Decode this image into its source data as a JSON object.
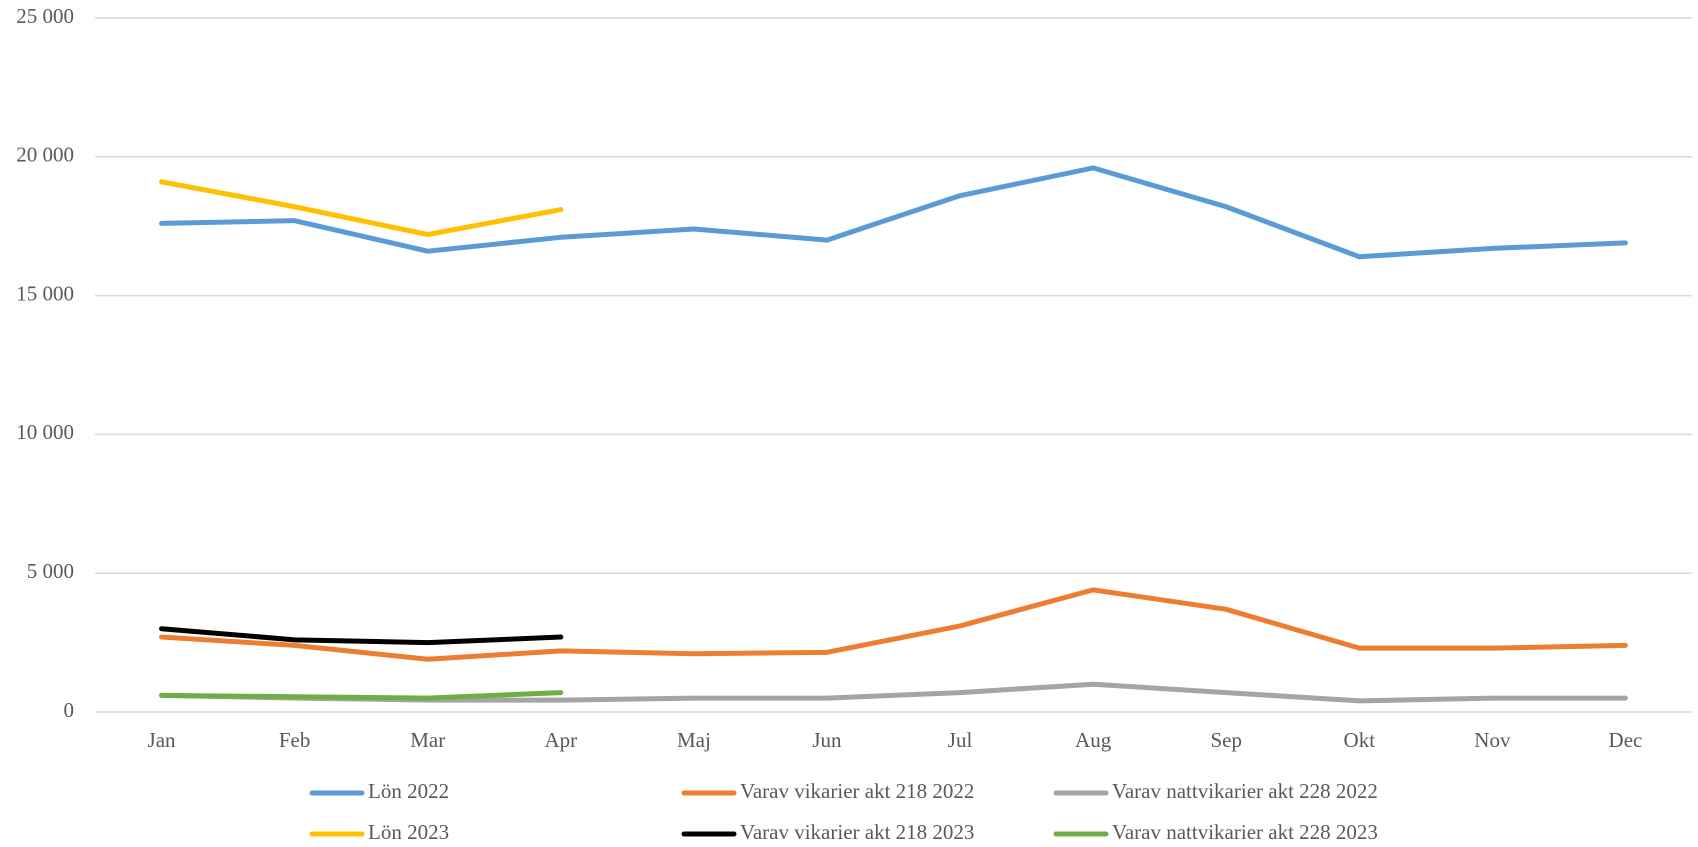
{
  "chart_data": {
    "type": "line",
    "categories": [
      "Jan",
      "Feb",
      "Mar",
      "Apr",
      "Maj",
      "Jun",
      "Jul",
      "Aug",
      "Sep",
      "Okt",
      "Nov",
      "Dec"
    ],
    "series": [
      {
        "name": "Lön 2022",
        "color": "#5b9bd5",
        "values": [
          17600,
          17700,
          16600,
          17100,
          17400,
          17000,
          18600,
          19600,
          18200,
          16400,
          16700,
          16900
        ]
      },
      {
        "name": "Varav vikarier akt 218 2022",
        "color": "#ed7d31",
        "values": [
          2700,
          2400,
          1900,
          2200,
          2100,
          2150,
          3100,
          4400,
          3700,
          2300,
          2300,
          2400
        ]
      },
      {
        "name": "Varav nattvikarier akt 228 2022",
        "color": "#a5a5a5",
        "values": [
          600,
          500,
          430,
          430,
          500,
          500,
          700,
          1000,
          700,
          400,
          500,
          500
        ]
      },
      {
        "name": "Lön 2023",
        "color": "#ffc000",
        "values": [
          19100,
          18200,
          17200,
          18100,
          null,
          null,
          null,
          null,
          null,
          null,
          null,
          null
        ]
      },
      {
        "name": "Varav vikarier akt 218 2023",
        "color": "#000000",
        "values": [
          3000,
          2600,
          2500,
          2700,
          null,
          null,
          null,
          null,
          null,
          null,
          null,
          null
        ]
      },
      {
        "name": "Varav nattvikarier akt 228 2023",
        "color": "#70ad47",
        "values": [
          600,
          550,
          500,
          700,
          null,
          null,
          null,
          null,
          null,
          null,
          null,
          null
        ]
      }
    ],
    "ylim": [
      0,
      25000
    ],
    "yticks": [
      {
        "value": 0,
        "label": "0"
      },
      {
        "value": 5000,
        "label": "5 000"
      },
      {
        "value": 10000,
        "label": "10 000"
      },
      {
        "value": 15000,
        "label": "15 000"
      },
      {
        "value": 20000,
        "label": "20 000"
      },
      {
        "value": 25000,
        "label": "25 000"
      }
    ],
    "grid": true,
    "legend": "bottom"
  }
}
